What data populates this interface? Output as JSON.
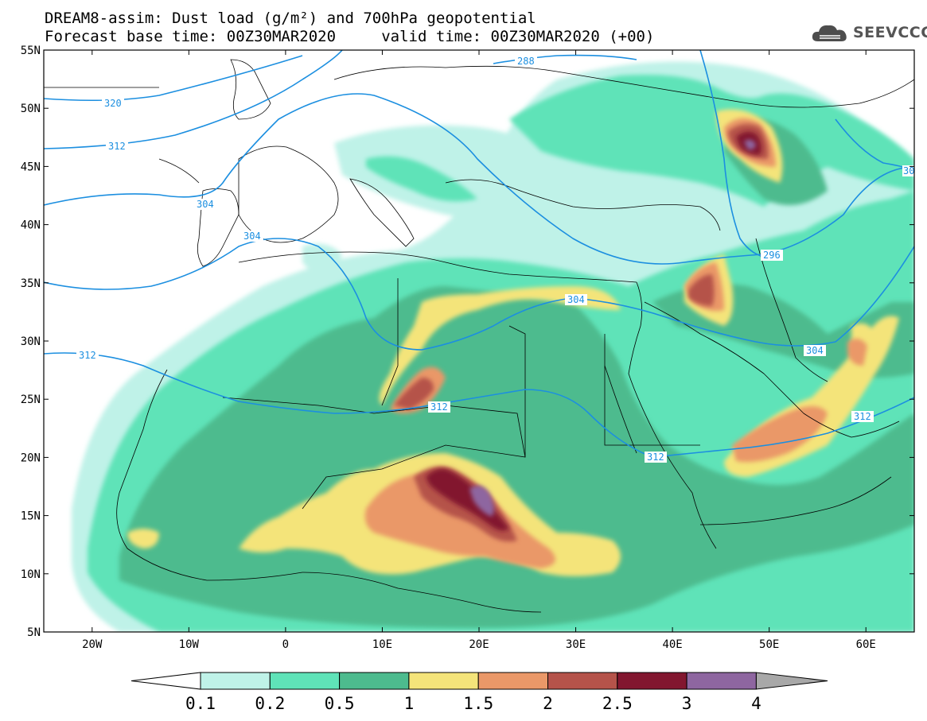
{
  "title": {
    "line1": "DREAM8-assim: Dust load (g/m²) and 700hPa geopotential",
    "line2": "Forecast base time: 00Z30MAR2020     valid time: 00Z30MAR2020 (+00)"
  },
  "logo": {
    "text": "SEEVCCC",
    "icon": "cloud-icon"
  },
  "axes": {
    "lat_labels": [
      "55N",
      "50N",
      "45N",
      "40N",
      "35N",
      "30N",
      "25N",
      "20N",
      "15N",
      "10N",
      "5N"
    ],
    "lat_values": [
      55,
      50,
      45,
      40,
      35,
      30,
      25,
      20,
      15,
      10,
      5
    ],
    "lon_labels": [
      "20W",
      "10W",
      "0",
      "10E",
      "20E",
      "30E",
      "40E",
      "50E",
      "60E"
    ],
    "lon_values": [
      -20,
      -10,
      0,
      10,
      20,
      30,
      40,
      50,
      60
    ],
    "lon_range": [
      -25,
      65
    ],
    "lat_range": [
      5,
      55
    ]
  },
  "contour_labels": [
    "320",
    "312",
    "304",
    "304",
    "312",
    "312",
    "312",
    "288",
    "296",
    "304",
    "304",
    "312",
    "30"
  ],
  "colorbar": {
    "labels": [
      "0.1",
      "0.2",
      "0.5",
      "1",
      "1.5",
      "2",
      "2.5",
      "3",
      "4"
    ],
    "colors": [
      "#ffffff",
      "#bff2e8",
      "#5fe3b8",
      "#4dbb8e",
      "#f4e47a",
      "#ea9868",
      "#b5534a",
      "#82162f",
      "#8e66a0",
      "#a8a8a8"
    ]
  },
  "colors": {
    "contour": "#1c8fe0",
    "coast": "#000000"
  }
}
